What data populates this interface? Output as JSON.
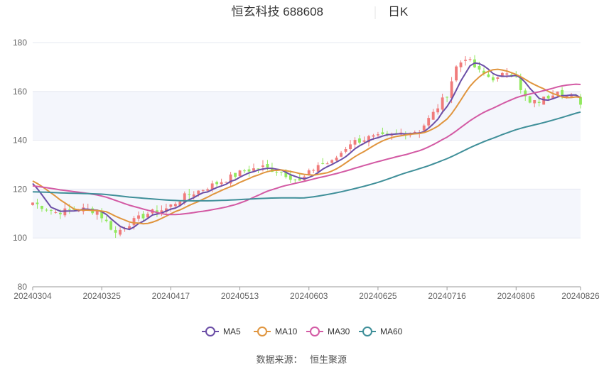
{
  "chart_data": {
    "type": "candlestick",
    "title": "恒玄科技 688608",
    "period_label": "日K",
    "source_label": "数据来源：",
    "source_name": "恒生聚源",
    "ylim": [
      80,
      180
    ],
    "yticks": [
      80,
      100,
      120,
      140,
      160,
      180
    ],
    "x_tick_labels": [
      "20240304",
      "20240325",
      "20240417",
      "20240513",
      "20240603",
      "20240625",
      "20240716",
      "20240806",
      "20240826"
    ],
    "x_tick_indices": [
      0,
      15,
      30,
      45,
      60,
      75,
      90,
      105,
      119
    ],
    "up_color": "#f07b7b",
    "down_color": "#91e85d",
    "legend_position": "bottom",
    "series": [
      {
        "name": "MA5",
        "color": "#6b4ea6"
      },
      {
        "name": "MA10",
        "color": "#e0953e"
      },
      {
        "name": "MA30",
        "color": "#d35aa4"
      },
      {
        "name": "MA60",
        "color": "#3f8f99"
      }
    ]
  }
}
